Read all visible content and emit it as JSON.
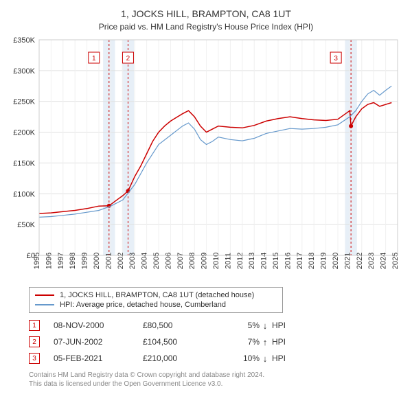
{
  "title": "1, JOCKS HILL, BRAMPTON, CA8 1UT",
  "subtitle": "Price paid vs. HM Land Registry's House Price Index (HPI)",
  "chart": {
    "type": "line",
    "background_color": "#ffffff",
    "grid_color": "#e0e0e0",
    "grid_minor_color": "#f0f0f0",
    "border_color": "#cccccc",
    "title_fontsize": 14,
    "subtitle_fontsize": 12,
    "axis_label_fontsize": 11,
    "x_range": [
      1995,
      2025
    ],
    "y_range": [
      0,
      350000
    ],
    "y_ticks": [
      0,
      50000,
      100000,
      150000,
      200000,
      250000,
      300000,
      350000
    ],
    "y_tick_labels": [
      "£0",
      "£50K",
      "£100K",
      "£150K",
      "£200K",
      "£250K",
      "£300K",
      "£350K"
    ],
    "x_ticks": [
      1995,
      1996,
      1997,
      1998,
      1999,
      2000,
      2001,
      2002,
      2003,
      2004,
      2005,
      2006,
      2007,
      2008,
      2009,
      2010,
      2011,
      2012,
      2013,
      2014,
      2015,
      2016,
      2017,
      2018,
      2019,
      2020,
      2021,
      2022,
      2023,
      2024,
      2025
    ],
    "markers_band_color": "#d0e0f0",
    "markers_band_opacity": 0.5,
    "marker_line_color": "#cc0000",
    "marker_dash": "3,3",
    "marker_dot_color": "#cc0000",
    "marker_dot_radius": 3,
    "marker_badge_border": "#cc0000",
    "marker_badge_text_color": "#cc0000",
    "series": [
      {
        "name": "price_paid",
        "label": "1, JOCKS HILL, BRAMPTON, CA8 1UT (detached house)",
        "color": "#cc0000",
        "width": 1.5,
        "points": [
          [
            1995.0,
            68000
          ],
          [
            1996.0,
            69000
          ],
          [
            1997.0,
            71000
          ],
          [
            1998.0,
            73000
          ],
          [
            1999.0,
            76000
          ],
          [
            2000.0,
            80000
          ],
          [
            2000.85,
            80500
          ],
          [
            2001.5,
            90000
          ],
          [
            2002.0,
            97000
          ],
          [
            2002.44,
            104500
          ],
          [
            2003.0,
            128000
          ],
          [
            2003.5,
            145000
          ],
          [
            2004.0,
            165000
          ],
          [
            2004.5,
            185000
          ],
          [
            2005.0,
            200000
          ],
          [
            2005.5,
            210000
          ],
          [
            2006.0,
            218000
          ],
          [
            2006.5,
            224000
          ],
          [
            2007.0,
            230000
          ],
          [
            2007.5,
            235000
          ],
          [
            2008.0,
            225000
          ],
          [
            2008.5,
            210000
          ],
          [
            2009.0,
            200000
          ],
          [
            2009.5,
            205000
          ],
          [
            2010.0,
            210000
          ],
          [
            2011.0,
            208000
          ],
          [
            2012.0,
            207000
          ],
          [
            2013.0,
            211000
          ],
          [
            2014.0,
            218000
          ],
          [
            2015.0,
            222000
          ],
          [
            2016.0,
            225000
          ],
          [
            2017.0,
            222000
          ],
          [
            2018.0,
            220000
          ],
          [
            2019.0,
            219000
          ],
          [
            2020.0,
            221000
          ],
          [
            2021.0,
            235000
          ],
          [
            2021.1,
            210000
          ],
          [
            2021.5,
            225000
          ],
          [
            2022.0,
            238000
          ],
          [
            2022.5,
            245000
          ],
          [
            2023.0,
            248000
          ],
          [
            2023.5,
            242000
          ],
          [
            2024.0,
            245000
          ],
          [
            2024.5,
            248000
          ]
        ]
      },
      {
        "name": "hpi",
        "label": "HPI: Average price, detached house, Cumberland",
        "color": "#6699cc",
        "width": 1.2,
        "points": [
          [
            1995.0,
            62000
          ],
          [
            1996.0,
            63000
          ],
          [
            1997.0,
            65000
          ],
          [
            1998.0,
            67000
          ],
          [
            1999.0,
            70000
          ],
          [
            2000.0,
            73000
          ],
          [
            2001.0,
            80000
          ],
          [
            2002.0,
            90000
          ],
          [
            2003.0,
            115000
          ],
          [
            2004.0,
            150000
          ],
          [
            2005.0,
            180000
          ],
          [
            2006.0,
            195000
          ],
          [
            2007.0,
            210000
          ],
          [
            2007.5,
            215000
          ],
          [
            2008.0,
            205000
          ],
          [
            2008.5,
            188000
          ],
          [
            2009.0,
            180000
          ],
          [
            2009.5,
            185000
          ],
          [
            2010.0,
            192000
          ],
          [
            2011.0,
            188000
          ],
          [
            2012.0,
            186000
          ],
          [
            2013.0,
            190000
          ],
          [
            2014.0,
            198000
          ],
          [
            2015.0,
            202000
          ],
          [
            2016.0,
            206000
          ],
          [
            2017.0,
            205000
          ],
          [
            2018.0,
            206000
          ],
          [
            2019.0,
            208000
          ],
          [
            2020.0,
            212000
          ],
          [
            2021.0,
            225000
          ],
          [
            2021.5,
            235000
          ],
          [
            2022.0,
            250000
          ],
          [
            2022.5,
            262000
          ],
          [
            2023.0,
            268000
          ],
          [
            2023.5,
            260000
          ],
          [
            2024.0,
            268000
          ],
          [
            2024.5,
            275000
          ]
        ]
      }
    ],
    "sale_markers": [
      {
        "n": "1",
        "x": 2000.85,
        "y": 80500
      },
      {
        "n": "2",
        "x": 2002.44,
        "y": 104500
      },
      {
        "n": "3",
        "x": 2021.1,
        "y": 210000
      }
    ]
  },
  "legend": {
    "font_size": 11,
    "border_color": "#999999"
  },
  "records": [
    {
      "n": "1",
      "date": "08-NOV-2000",
      "price": "£80,500",
      "pct": "5%",
      "arrow": "↓",
      "suffix": "HPI"
    },
    {
      "n": "2",
      "date": "07-JUN-2002",
      "price": "£104,500",
      "pct": "7%",
      "arrow": "↑",
      "suffix": "HPI"
    },
    {
      "n": "3",
      "date": "05-FEB-2021",
      "price": "£210,000",
      "pct": "10%",
      "arrow": "↓",
      "suffix": "HPI"
    }
  ],
  "footer": {
    "line1": "Contains HM Land Registry data © Crown copyright and database right 2024.",
    "line2": "This data is licensed under the Open Government Licence v3.0."
  }
}
